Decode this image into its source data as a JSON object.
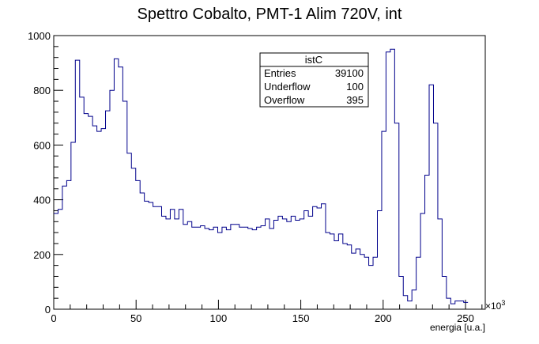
{
  "chart_data": {
    "type": "histogram",
    "title": "Spettro Cobalto, PMT-1 Alim 720V, int",
    "xlabel": "energia [u.a.]",
    "ylabel": "",
    "x_multiplier_label": "×10",
    "x_multiplier_exponent": "3",
    "xlim": [
      0,
      262
    ],
    "ylim": [
      0,
      1000
    ],
    "bin_width": 2.62,
    "x_ticks": [
      0,
      50,
      100,
      150,
      200,
      250
    ],
    "y_ticks": [
      0,
      200,
      400,
      600,
      800,
      1000
    ],
    "line_color": "#00008b",
    "values": [
      350,
      365,
      450,
      470,
      610,
      910,
      775,
      715,
      705,
      670,
      650,
      660,
      725,
      800,
      915,
      885,
      760,
      570,
      515,
      470,
      425,
      395,
      390,
      375,
      375,
      340,
      330,
      365,
      330,
      365,
      310,
      320,
      300,
      300,
      305,
      295,
      290,
      300,
      280,
      300,
      290,
      310,
      310,
      300,
      300,
      295,
      290,
      300,
      305,
      330,
      295,
      325,
      340,
      330,
      320,
      340,
      325,
      330,
      360,
      340,
      375,
      370,
      385,
      280,
      275,
      250,
      275,
      240,
      235,
      205,
      220,
      200,
      190,
      160,
      190,
      360,
      650,
      940,
      950,
      680,
      120,
      50,
      30,
      70,
      190,
      350,
      490,
      820,
      680,
      330,
      120,
      40,
      20,
      30,
      30,
      25
    ]
  },
  "stats_box": {
    "title": "istC",
    "rows": [
      {
        "label": "Entries",
        "value": "39100"
      },
      {
        "label": "Underflow",
        "value": "100"
      },
      {
        "label": "Overflow",
        "value": "395"
      }
    ]
  }
}
